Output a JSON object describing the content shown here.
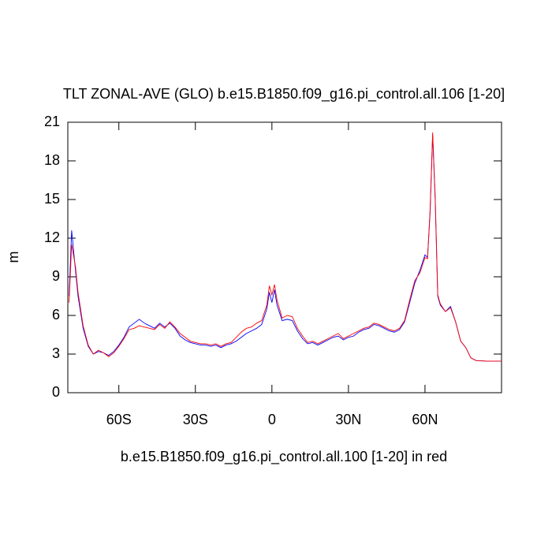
{
  "chart_data": {
    "type": "line",
    "title": "TLT ZONAL-AVE (GLO) b.e15.B1850.f09_g16.pi_control.all.106 [1-20]",
    "x_label": "b.e15.B1850.f09_g16.pi_control.all.100 [1-20] in red",
    "y_label": "m",
    "x": [
      -79.5,
      -78.5,
      -77,
      -76,
      -74,
      -72,
      -70,
      -68,
      -66,
      -64,
      -62,
      -60,
      -58,
      -56,
      -54,
      -52,
      -50,
      -48,
      -46,
      -44,
      -42,
      -40,
      -38,
      -36,
      -34,
      -32,
      -30,
      -28,
      -26,
      -24,
      -22,
      -20,
      -18,
      -16,
      -14,
      -12,
      -10,
      -8,
      -6,
      -4,
      -2,
      -1,
      0,
      1,
      2,
      4,
      6,
      8,
      10,
      12,
      14,
      16,
      18,
      20,
      22,
      24,
      26,
      28,
      30,
      32,
      34,
      36,
      38,
      40,
      42,
      44,
      46,
      48,
      50,
      52,
      54,
      56,
      58,
      60,
      61,
      62,
      63,
      64,
      65,
      66,
      68,
      70,
      72,
      74,
      76,
      78,
      80,
      84,
      90
    ],
    "series": [
      {
        "color": "#0000ff",
        "values": [
          7.5,
          12.6,
          9.5,
          7.5,
          5.0,
          3.6,
          3.0,
          3.2,
          3.1,
          2.9,
          3.2,
          3.7,
          4.3,
          5.1,
          5.4,
          5.7,
          5.4,
          5.2,
          5.0,
          5.4,
          5.1,
          5.4,
          5.0,
          4.4,
          4.1,
          3.9,
          3.8,
          3.7,
          3.7,
          3.6,
          3.7,
          3.5,
          3.7,
          3.8,
          4.0,
          4.3,
          4.6,
          4.8,
          5.0,
          5.3,
          6.5,
          7.8,
          7.0,
          8.0,
          6.8,
          5.6,
          5.7,
          5.6,
          4.8,
          4.2,
          3.8,
          3.9,
          3.7,
          3.9,
          4.1,
          4.3,
          4.4,
          4.1,
          4.3,
          4.4,
          4.7,
          4.9,
          5.0,
          5.3,
          5.2,
          5.0,
          4.8,
          4.7,
          4.9,
          5.5,
          7.0,
          8.5,
          9.5,
          10.7,
          10.5,
          14.0,
          20.0,
          15.0,
          7.5,
          6.8,
          6.3,
          6.7,
          5.5,
          4.0,
          3.5,
          2.7,
          2.5,
          2.45,
          2.45
        ]
      },
      {
        "color": "#ff0000",
        "values": [
          7.0,
          11.5,
          9.8,
          7.8,
          5.2,
          3.7,
          3.0,
          3.3,
          3.1,
          2.8,
          3.1,
          3.6,
          4.2,
          4.9,
          5.0,
          5.2,
          5.1,
          5.0,
          4.9,
          5.3,
          5.0,
          5.5,
          5.1,
          4.6,
          4.3,
          4.0,
          3.9,
          3.8,
          3.8,
          3.7,
          3.8,
          3.6,
          3.8,
          3.9,
          4.3,
          4.7,
          5.0,
          5.1,
          5.4,
          5.6,
          6.8,
          8.3,
          7.6,
          8.4,
          7.2,
          5.8,
          6.0,
          5.9,
          5.0,
          4.4,
          3.9,
          4.0,
          3.8,
          4.0,
          4.2,
          4.4,
          4.6,
          4.2,
          4.4,
          4.6,
          4.8,
          5.0,
          5.1,
          5.4,
          5.3,
          5.1,
          4.9,
          4.8,
          5.0,
          5.6,
          7.2,
          8.7,
          9.3,
          10.5,
          10.4,
          14.2,
          20.2,
          15.2,
          7.6,
          6.9,
          6.3,
          6.6,
          5.5,
          4.0,
          3.5,
          2.7,
          2.5,
          2.45,
          2.45
        ]
      }
    ],
    "xlim": [
      -80,
      90
    ],
    "xticks": [
      {
        "value": -60,
        "label": "60S"
      },
      {
        "value": -30,
        "label": "30S"
      },
      0,
      {
        "value": 30,
        "label": "30N"
      },
      {
        "value": 60,
        "label": "60N"
      }
    ],
    "ylim": [
      0,
      21
    ],
    "yticks": [
      0,
      3,
      6,
      9,
      12,
      15,
      18,
      21
    ]
  }
}
